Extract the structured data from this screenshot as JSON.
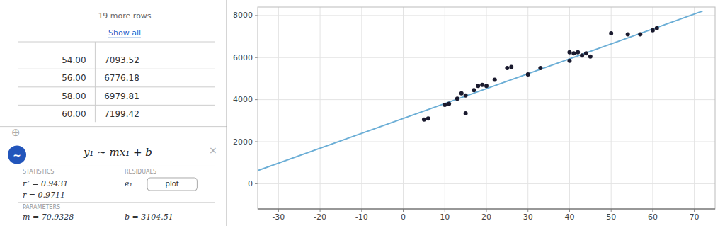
{
  "chart_data": {
    "type": "scatter",
    "series": [
      {
        "type": "scatter",
        "color": "#1a1a2e",
        "x": [
          5,
          6,
          10,
          11,
          13,
          14,
          15,
          15,
          17,
          18,
          19,
          20,
          22,
          25,
          26,
          30,
          33,
          40,
          40,
          41,
          42,
          43,
          44,
          45,
          50,
          54,
          57,
          60,
          61
        ],
        "values": [
          3050,
          3100,
          3750,
          3800,
          4050,
          4300,
          3350,
          4200,
          4450,
          4650,
          4700,
          4650,
          4950,
          5500,
          5550,
          5200,
          5500,
          5850,
          6250,
          6200,
          6250,
          6100,
          6200,
          6050,
          7150,
          7100,
          7100,
          7300,
          7400
        ]
      },
      {
        "type": "line",
        "color": "#6baed6",
        "x": [
          -35,
          72
        ],
        "values": [
          621.862,
          8211.6716
        ]
      }
    ],
    "xlim": [
      -35,
      75
    ],
    "ylim": [
      -1200,
      8400
    ],
    "xticks": [
      -30,
      -20,
      -10,
      0,
      10,
      20,
      30,
      40,
      50,
      60,
      70
    ],
    "yticks": [
      0,
      2000,
      4000,
      6000,
      8000
    ],
    "grid": true,
    "table": [
      [
        {
          "value": 54.0,
          "label": "54.00"
        },
        7093.52
      ],
      [
        {
          "value": 56.0,
          "label": "56.00"
        },
        6776.18
      ],
      [
        {
          "value": 58.0,
          "label": "58.00"
        },
        6979.81
      ],
      [
        {
          "value": 60.0,
          "label": "60.00"
        },
        7199.42
      ]
    ],
    "annotations": {
      "more_rows": "19 more rows",
      "show_all": "Show all",
      "search_icon": "⊕",
      "regression_icon": "∼",
      "equation": "y₁ ∼ mx₁ + b",
      "close_icon": "×",
      "stats_label": "STATISTICS",
      "residuals_label": "RESIDUALS",
      "r2": "r² = 0.9431",
      "residual_name": "e₁",
      "plot_button": "plot",
      "r": "r = 0.9711",
      "params_label": "PARAMETERS",
      "m": "m = 70.9328",
      "b": "b = 3104.51"
    }
  }
}
